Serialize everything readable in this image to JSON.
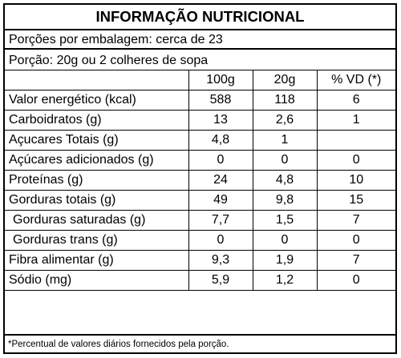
{
  "label": {
    "title": "INFORMAÇÃO NUTRICIONAL",
    "servings_per_package": "Porções por embalagem: cerca de 23",
    "serving_size": "Porção: 20g ou 2 colheres de sopa",
    "columns": [
      "",
      "100g",
      "20g",
      "% VD (*)"
    ],
    "rows": [
      {
        "name": "Valor energético (kcal)",
        "per100g": "588",
        "per20g": "118",
        "vd": "6"
      },
      {
        "name": "Carboidratos (g)",
        "per100g": "13",
        "per20g": "2,6",
        "vd": "1"
      },
      {
        "name": "Açucares Totais (g)",
        "per100g": "4,8",
        "per20g": "1",
        "vd": ""
      },
      {
        "name": "Açúcares adicionados (g)",
        "per100g": "0",
        "per20g": "0",
        "vd": "0"
      },
      {
        "name": "Proteínas (g)",
        "per100g": "24",
        "per20g": "4,8",
        "vd": "10"
      },
      {
        "name": "Gorduras totais (g)",
        "per100g": "49",
        "per20g": "9,8",
        "vd": "15"
      },
      {
        "name": "Gorduras saturadas (g)",
        "per100g": "7,7",
        "per20g": "1,5",
        "vd": "7"
      },
      {
        "name": "Gorduras trans (g)",
        "per100g": "0",
        "per20g": "0",
        "vd": "0"
      },
      {
        "name": "Fibra alimentar (g)",
        "per100g": "9,3",
        "per20g": "1,9",
        "vd": "7"
      },
      {
        "name": "Sódio (mg)",
        "per100g": "5,9",
        "per20g": "1,2",
        "vd": "0"
      }
    ],
    "footnote": "*Percentual de valores diários fornecidos pela porção."
  }
}
